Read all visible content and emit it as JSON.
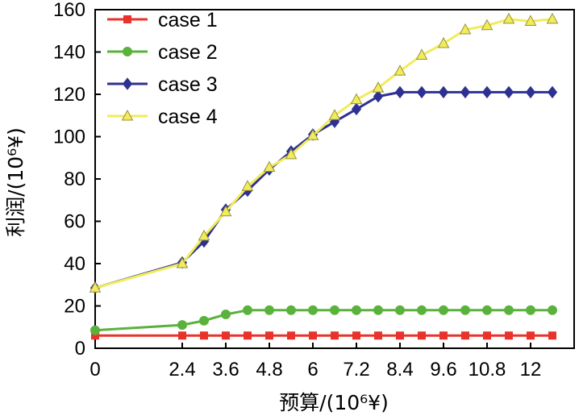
{
  "chart_data": {
    "type": "line",
    "title": "",
    "xlabel": "预算/(10⁶¥)",
    "ylabel": "利润/(10⁶¥)",
    "xlim": [
      0,
      13.2
    ],
    "ylim": [
      0,
      160
    ],
    "xticks": [
      0,
      2.4,
      3.6,
      4.8,
      6,
      7.2,
      8.4,
      9.6,
      10.8,
      12
    ],
    "xtick_labels": [
      "0",
      "2.4",
      "3.6",
      "4.8",
      "6",
      "7.2",
      "8.4",
      "9.6",
      "10.8",
      "12"
    ],
    "yticks": [
      0,
      20,
      40,
      60,
      80,
      100,
      120,
      140,
      160
    ],
    "ytick_labels": [
      "0",
      "20",
      "40",
      "60",
      "80",
      "100",
      "120",
      "140",
      "160"
    ],
    "grid": false,
    "legend_position": "top-left",
    "x": [
      0,
      2.4,
      3.0,
      3.6,
      4.2,
      4.8,
      5.4,
      6.0,
      6.6,
      7.2,
      7.8,
      8.4,
      9.0,
      9.6,
      10.2,
      10.8,
      11.4,
      12.0,
      12.6
    ],
    "series": [
      {
        "name": "case 1",
        "color": "#e8322a",
        "marker": "square",
        "values": [
          6,
          6,
          6,
          6,
          6,
          6,
          6,
          6,
          6,
          6,
          6,
          6,
          6,
          6,
          6,
          6,
          6,
          6,
          6
        ]
      },
      {
        "name": "case 2",
        "color": "#5ab23c",
        "marker": "circle",
        "values": [
          8.5,
          11,
          13,
          16,
          18,
          18,
          18,
          18,
          18,
          18,
          18,
          18,
          18,
          18,
          18,
          18,
          18,
          18,
          18
        ]
      },
      {
        "name": "case 3",
        "color": "#2e3192",
        "marker": "diamond",
        "values": [
          28.5,
          40.5,
          50.5,
          65.5,
          74.5,
          84.5,
          93,
          101,
          107,
          113,
          119,
          121,
          121,
          121,
          121,
          121,
          121,
          121,
          121
        ]
      },
      {
        "name": "case 4",
        "color": "#f0ec5a",
        "marker": "triangle",
        "values": [
          28.5,
          40,
          53,
          64.5,
          76.5,
          85.5,
          91.5,
          100.5,
          110,
          117.5,
          123,
          131,
          138.5,
          144,
          150.5,
          152.5,
          155.5,
          154.5,
          155.5
        ]
      }
    ]
  }
}
